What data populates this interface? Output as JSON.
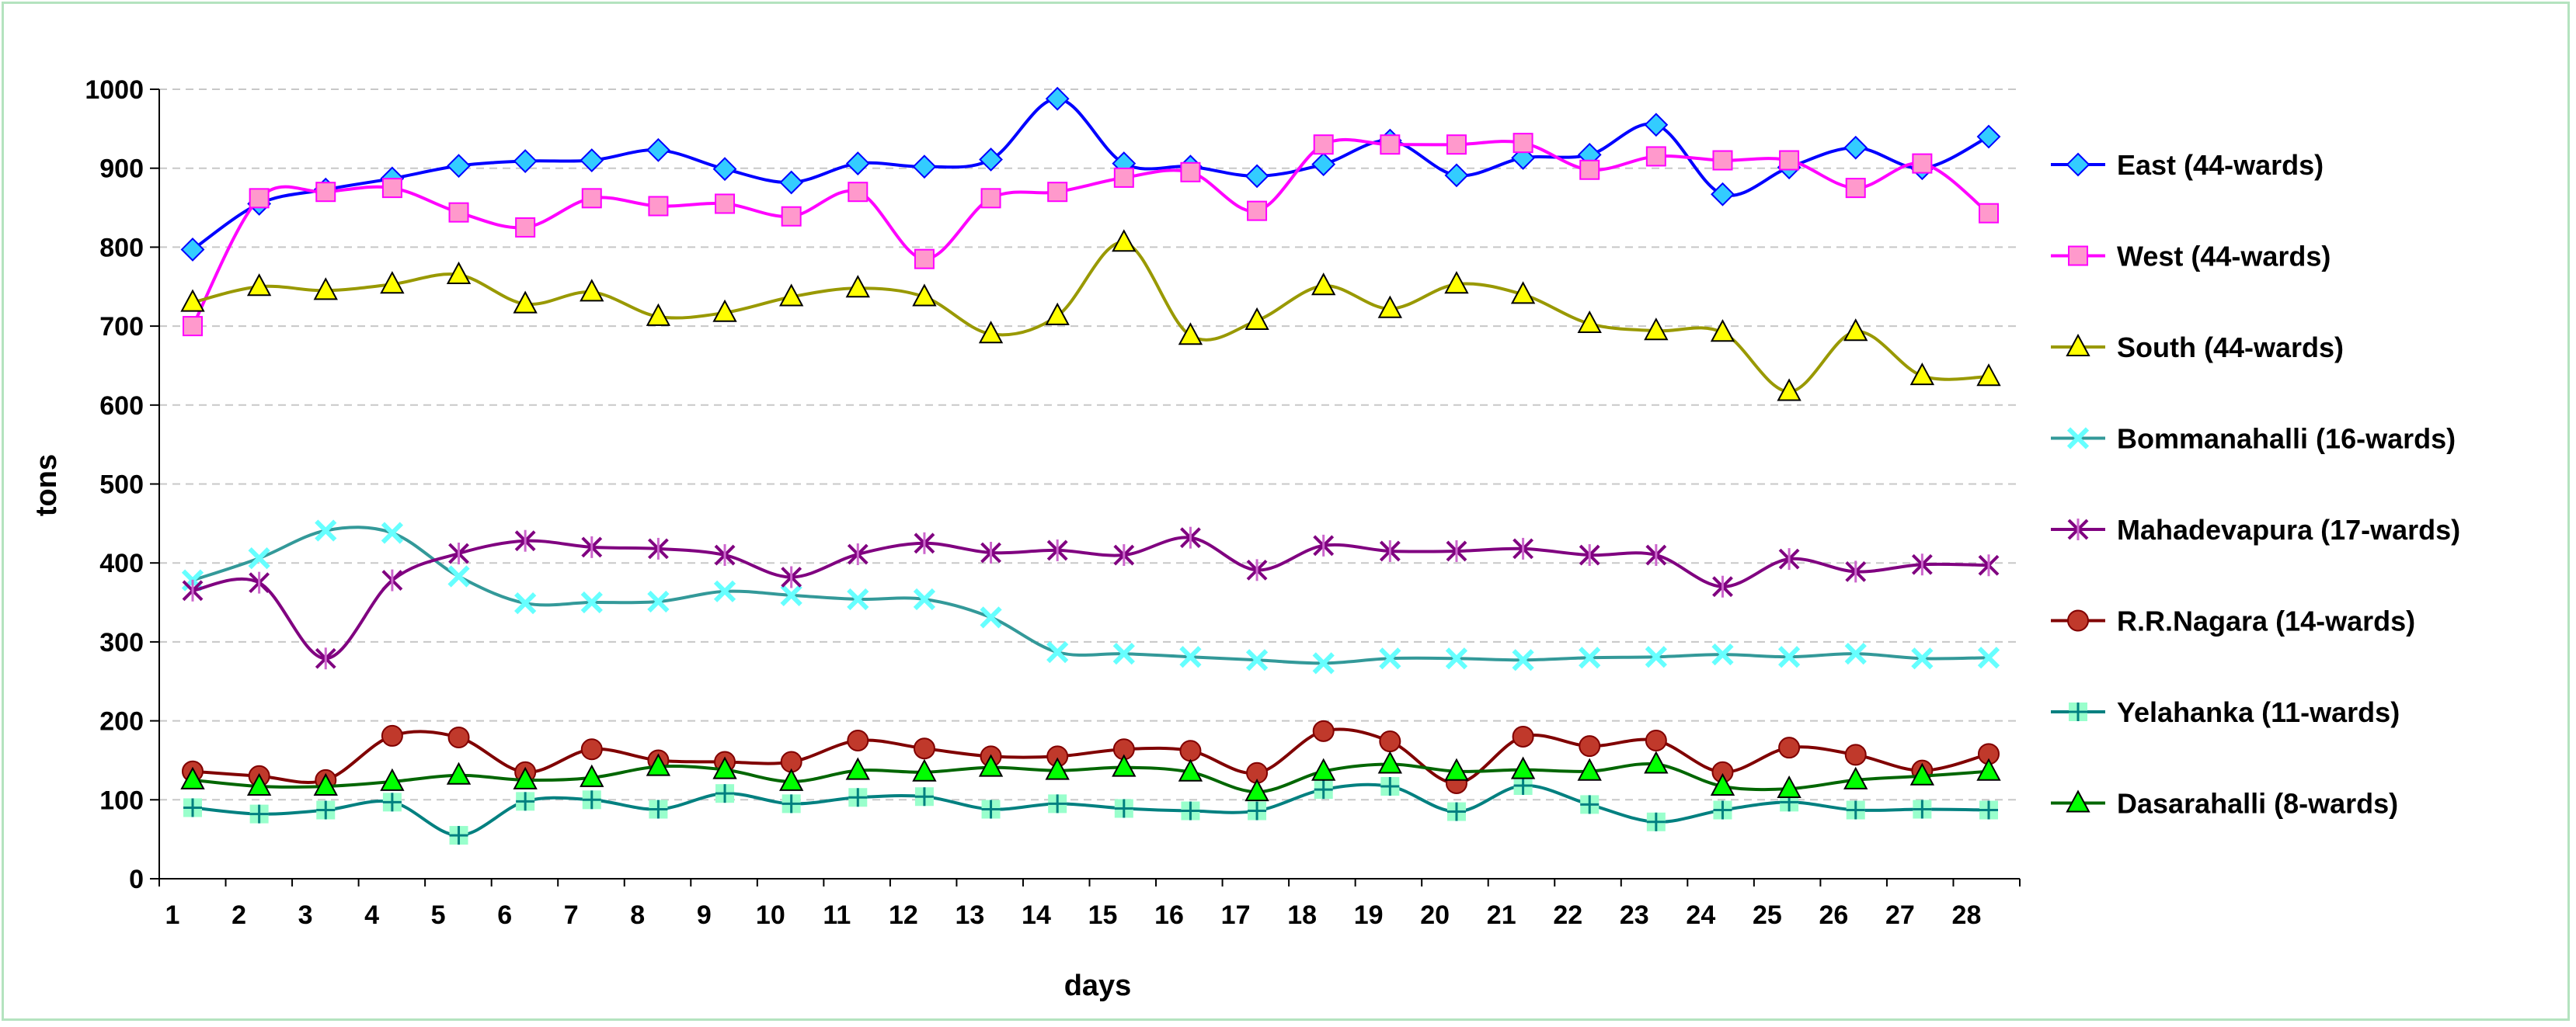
{
  "chart_data": {
    "type": "line",
    "title": "",
    "xlabel": "days",
    "ylabel": "tons",
    "ylim": [
      0,
      1000
    ],
    "yticks": [
      "0",
      "100",
      "200",
      "300",
      "400",
      "500",
      "600",
      "700",
      "800",
      "900",
      "1000"
    ],
    "categories": [
      "1",
      "2",
      "3",
      "4",
      "5",
      "6",
      "7",
      "8",
      "9",
      "10",
      "11",
      "12",
      "13",
      "14",
      "15",
      "16",
      "17",
      "18",
      "19",
      "20",
      "21",
      "22",
      "23",
      "24",
      "25",
      "26",
      "27",
      "28"
    ],
    "grid": "horizontal",
    "legend": "right",
    "series": [
      {
        "name": "East (44-wards)",
        "color": "#0000ff",
        "marker": "diamond",
        "marker_fill": "#33ccff",
        "values": [
          797,
          855,
          873,
          887,
          903,
          909,
          910,
          923,
          899,
          882,
          906,
          902,
          911,
          988,
          906,
          902,
          890,
          905,
          935,
          891,
          913,
          917,
          955,
          867,
          901,
          926,
          900,
          940
        ]
      },
      {
        "name": "West (44-wards)",
        "color": "#ff00ff",
        "marker": "square",
        "marker_fill": "#ff99cc",
        "values": [
          700,
          862,
          870,
          875,
          844,
          825,
          862,
          852,
          855,
          839,
          870,
          785,
          862,
          870,
          888,
          895,
          846,
          930,
          930,
          930,
          932,
          898,
          915,
          910,
          910,
          875,
          906,
          843
        ]
      },
      {
        "name": "South (44-wards)",
        "color": "#999900",
        "marker": "triangle",
        "marker_fill": "#ffff00",
        "values": [
          730,
          750,
          745,
          753,
          765,
          728,
          743,
          712,
          717,
          737,
          748,
          737,
          690,
          713,
          806,
          688,
          707,
          751,
          722,
          753,
          740,
          703,
          694,
          692,
          617,
          693,
          637,
          636
        ]
      },
      {
        "name": "Bommanahalli (16-wards)",
        "color": "#339999",
        "marker": "x",
        "marker_fill": "#66ffff",
        "values": [
          378,
          406,
          441,
          438,
          383,
          349,
          350,
          351,
          364,
          359,
          354,
          354,
          331,
          287,
          285,
          281,
          277,
          273,
          279,
          279,
          277,
          280,
          281,
          284,
          281,
          285,
          279,
          280
        ]
      },
      {
        "name": "Mahadevapura (17-wards)",
        "color": "#800080",
        "marker": "star",
        "marker_fill": "#cc66cc",
        "values": [
          365,
          375,
          279,
          378,
          412,
          428,
          420,
          418,
          410,
          382,
          411,
          425,
          413,
          416,
          410,
          432,
          391,
          422,
          415,
          415,
          418,
          410,
          410,
          370,
          405,
          389,
          398,
          397
        ]
      },
      {
        "name": "R.R.Nagara (14-wards)",
        "color": "#800000",
        "marker": "circle",
        "marker_fill": "#c0392b",
        "values": [
          136,
          130,
          125,
          181,
          179,
          135,
          164,
          150,
          148,
          148,
          175,
          165,
          155,
          155,
          164,
          162,
          134,
          187,
          174,
          121,
          180,
          168,
          175,
          135,
          166,
          157,
          137,
          158
        ]
      },
      {
        "name": "Yelahanka (11-wards)",
        "color": "#008080",
        "marker": "plus",
        "marker_fill": "#99ffcc",
        "values": [
          90,
          82,
          87,
          97,
          55,
          98,
          100,
          88,
          108,
          95,
          103,
          104,
          88,
          95,
          89,
          86,
          86,
          113,
          117,
          85,
          118,
          94,
          72,
          87,
          97,
          87,
          88,
          87
        ]
      },
      {
        "name": "Dasarahalli (8-wards)",
        "color": "#006600",
        "marker": "triangle",
        "marker_fill": "#00ff00",
        "values": [
          125,
          117,
          117,
          123,
          131,
          125,
          128,
          142,
          138,
          123,
          137,
          135,
          141,
          137,
          141,
          135,
          110,
          136,
          145,
          136,
          138,
          136,
          145,
          117,
          114,
          125,
          130,
          136
        ]
      }
    ]
  }
}
